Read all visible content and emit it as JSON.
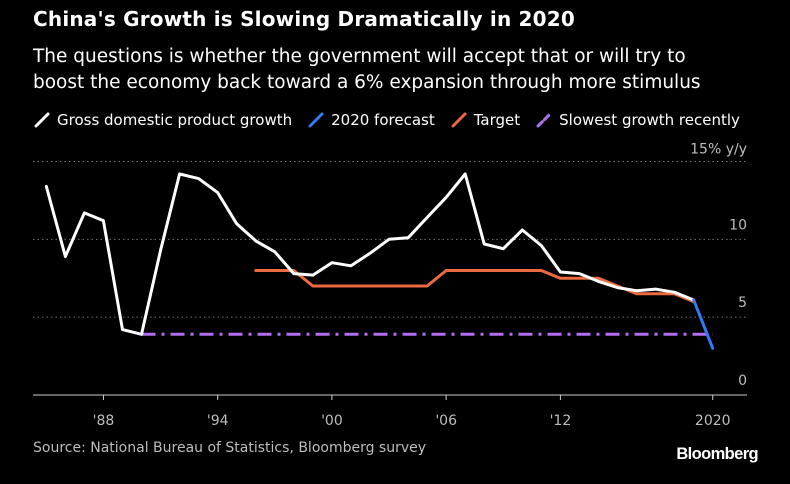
{
  "chart_data": {
    "type": "line",
    "title": "China's Growth is Slowing Dramatically in 2020",
    "subtitle_lines": [
      "The questions is whether the government will accept that or will try to",
      "boost the economy back toward a 6% expansion through more stimulus"
    ],
    "ylabel": "15% y/y",
    "ylim": [
      0,
      15
    ],
    "yticks": [
      {
        "value": 15,
        "label": "15% y/y"
      },
      {
        "value": 10,
        "label": "10"
      },
      {
        "value": 5,
        "label": "5"
      },
      {
        "value": 0,
        "label": "0"
      }
    ],
    "xlim": [
      1984.3,
      2021.8
    ],
    "xticks": [
      {
        "value": 1988,
        "label": "'88"
      },
      {
        "value": 1994,
        "label": "'94"
      },
      {
        "value": 2000,
        "label": "'00"
      },
      {
        "value": 2006,
        "label": "'06"
      },
      {
        "value": 2012,
        "label": "'12"
      },
      {
        "value": 2020,
        "label": "2020"
      }
    ],
    "grid": true,
    "legend_position": "top",
    "series": [
      {
        "name": "Gross domestic product growth",
        "color": "#ffffff",
        "style": "solid",
        "points": [
          [
            1985,
            13.4
          ],
          [
            1986,
            8.9
          ],
          [
            1987,
            11.7
          ],
          [
            1988,
            11.2
          ],
          [
            1989,
            4.2
          ],
          [
            1990,
            3.9
          ],
          [
            1991,
            9.3
          ],
          [
            1992,
            14.2
          ],
          [
            1993,
            13.9
          ],
          [
            1994,
            13.0
          ],
          [
            1995,
            11.0
          ],
          [
            1996,
            9.9
          ],
          [
            1997,
            9.2
          ],
          [
            1998,
            7.8
          ],
          [
            1999,
            7.7
          ],
          [
            2000,
            8.5
          ],
          [
            2001,
            8.3
          ],
          [
            2002,
            9.1
          ],
          [
            2003,
            10.0
          ],
          [
            2004,
            10.1
          ],
          [
            2005,
            11.4
          ],
          [
            2006,
            12.7
          ],
          [
            2007,
            14.2
          ],
          [
            2008,
            9.7
          ],
          [
            2009,
            9.4
          ],
          [
            2010,
            10.6
          ],
          [
            2011,
            9.6
          ],
          [
            2012,
            7.9
          ],
          [
            2013,
            7.8
          ],
          [
            2014,
            7.3
          ],
          [
            2015,
            6.9
          ],
          [
            2016,
            6.7
          ],
          [
            2017,
            6.8
          ],
          [
            2018,
            6.6
          ],
          [
            2019,
            6.1
          ]
        ]
      },
      {
        "name": "2020 forecast",
        "color": "#2f7cf6",
        "style": "solid",
        "points": [
          [
            2019,
            6.1
          ],
          [
            2020,
            3.0
          ]
        ]
      },
      {
        "name": "Target",
        "color": "#ec6a3f",
        "style": "solid",
        "points": [
          [
            1996,
            8.0
          ],
          [
            1998,
            8.0
          ],
          [
            1999,
            7.0
          ],
          [
            2005,
            7.0
          ],
          [
            2006,
            8.0
          ],
          [
            2011,
            8.0
          ],
          [
            2012,
            7.5
          ],
          [
            2014,
            7.5
          ],
          [
            2015,
            7.0
          ],
          [
            2016,
            6.5
          ],
          [
            2018,
            6.5
          ],
          [
            2019,
            6.0
          ]
        ]
      },
      {
        "name": "Slowest growth recently",
        "color": "#b36df0",
        "style": "dashdot",
        "points": [
          [
            1990,
            3.9
          ],
          [
            2020,
            3.9
          ]
        ]
      }
    ]
  },
  "source": "Source: National Bureau of Statistics, Bloomberg survey",
  "brand": "Bloomberg"
}
